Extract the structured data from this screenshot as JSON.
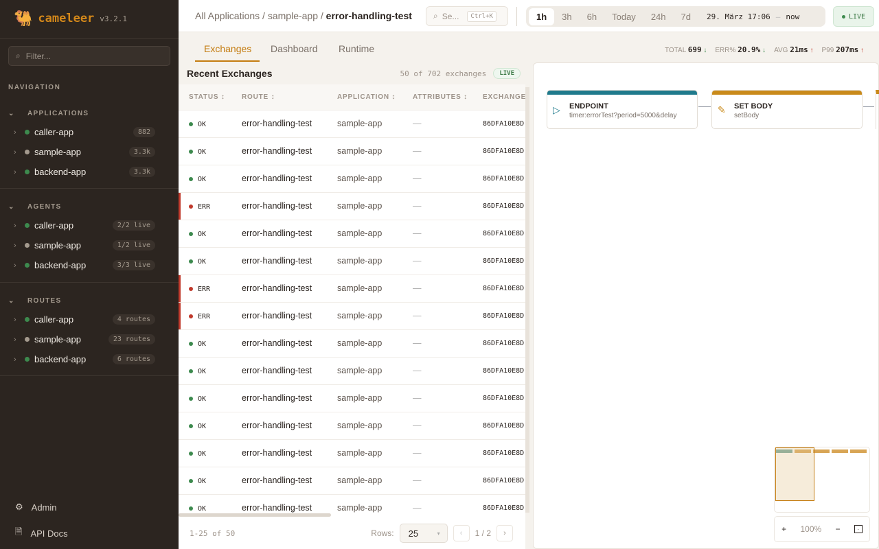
{
  "app": {
    "name": "cameleer",
    "version": "v3.2.1"
  },
  "sidebar": {
    "filter_placeholder": "Filter...",
    "nav_label": "NAVIGATION",
    "sections": [
      {
        "title": "APPLICATIONS",
        "items": [
          {
            "label": "caller-app",
            "status": "green",
            "badge": "882"
          },
          {
            "label": "sample-app",
            "status": "gray",
            "badge": "3.3k"
          },
          {
            "label": "backend-app",
            "status": "green",
            "badge": "3.3k"
          }
        ]
      },
      {
        "title": "AGENTS",
        "items": [
          {
            "label": "caller-app",
            "status": "green",
            "badge": "2/2 live"
          },
          {
            "label": "sample-app",
            "status": "gray",
            "badge": "1/2 live"
          },
          {
            "label": "backend-app",
            "status": "green",
            "badge": "3/3 live"
          }
        ]
      },
      {
        "title": "ROUTES",
        "items": [
          {
            "label": "caller-app",
            "status": "green",
            "badge": "4 routes"
          },
          {
            "label": "sample-app",
            "status": "gray",
            "badge": "23 routes"
          },
          {
            "label": "backend-app",
            "status": "green",
            "badge": "6 routes"
          }
        ]
      }
    ],
    "footer": {
      "admin": "Admin",
      "api_docs": "API Docs"
    }
  },
  "topbar": {
    "breadcrumb": [
      "All Applications",
      "sample-app",
      "error-handling-test"
    ],
    "search_placeholder": "Se...",
    "search_shortcut": "Ctrl+K",
    "ranges": [
      "1h",
      "3h",
      "6h",
      "Today",
      "24h",
      "7d"
    ],
    "active_range": "1h",
    "date_from": "29. März 17:06",
    "date_sep": "—",
    "date_to": "now",
    "live": "LIVE"
  },
  "tabs": [
    "Exchanges",
    "Dashboard",
    "Runtime"
  ],
  "kpis": [
    {
      "label": "TOTAL",
      "value": "699",
      "trend": "down"
    },
    {
      "label": "ERR%",
      "value": "20.9%",
      "trend": "down"
    },
    {
      "label": "AVG",
      "value": "21ms",
      "trend": "up"
    },
    {
      "label": "P99",
      "value": "207ms",
      "trend": "up"
    }
  ],
  "exchanges": {
    "title": "Recent Exchanges",
    "count": "50 of 702 exchanges",
    "live": "LIVE",
    "columns": [
      "STATUS",
      "ROUTE",
      "APPLICATION",
      "ATTRIBUTES",
      "EXCHANGE"
    ],
    "rows": [
      {
        "status": "OK",
        "route": "error-handling-test",
        "app": "sample-app",
        "attrs": "—",
        "id": "86DFA10E8D"
      },
      {
        "status": "OK",
        "route": "error-handling-test",
        "app": "sample-app",
        "attrs": "—",
        "id": "86DFA10E8D"
      },
      {
        "status": "OK",
        "route": "error-handling-test",
        "app": "sample-app",
        "attrs": "—",
        "id": "86DFA10E8D"
      },
      {
        "status": "ERR",
        "route": "error-handling-test",
        "app": "sample-app",
        "attrs": "—",
        "id": "86DFA10E8D"
      },
      {
        "status": "OK",
        "route": "error-handling-test",
        "app": "sample-app",
        "attrs": "—",
        "id": "86DFA10E8D"
      },
      {
        "status": "OK",
        "route": "error-handling-test",
        "app": "sample-app",
        "attrs": "—",
        "id": "86DFA10E8D"
      },
      {
        "status": "ERR",
        "route": "error-handling-test",
        "app": "sample-app",
        "attrs": "—",
        "id": "86DFA10E8D"
      },
      {
        "status": "ERR",
        "route": "error-handling-test",
        "app": "sample-app",
        "attrs": "—",
        "id": "86DFA10E8D"
      },
      {
        "status": "OK",
        "route": "error-handling-test",
        "app": "sample-app",
        "attrs": "—",
        "id": "86DFA10E8D"
      },
      {
        "status": "OK",
        "route": "error-handling-test",
        "app": "sample-app",
        "attrs": "—",
        "id": "86DFA10E8D"
      },
      {
        "status": "OK",
        "route": "error-handling-test",
        "app": "sample-app",
        "attrs": "—",
        "id": "86DFA10E8D"
      },
      {
        "status": "OK",
        "route": "error-handling-test",
        "app": "sample-app",
        "attrs": "—",
        "id": "86DFA10E8D"
      },
      {
        "status": "OK",
        "route": "error-handling-test",
        "app": "sample-app",
        "attrs": "—",
        "id": "86DFA10E8D"
      },
      {
        "status": "OK",
        "route": "error-handling-test",
        "app": "sample-app",
        "attrs": "—",
        "id": "86DFA10E8D"
      },
      {
        "status": "OK",
        "route": "error-handling-test",
        "app": "sample-app",
        "attrs": "—",
        "id": "86DFA10E8D"
      }
    ],
    "pager": {
      "range": "1-25 of 50",
      "rows_label": "Rows:",
      "rows_value": "25",
      "page": "1 / 2"
    }
  },
  "diagram": {
    "nodes": [
      {
        "type": "ENDPOINT",
        "detail": "timer:errorTest?period=5000&delay",
        "color": "#1f7a8c"
      },
      {
        "type": "SET BODY",
        "detail": "setBody",
        "color": "#c98a1a"
      }
    ],
    "zoom": "100%"
  },
  "colors": {
    "accent": "#c47c10",
    "ok": "#3d8a4e",
    "err": "#c0392b",
    "idle": "#a49a8e"
  }
}
